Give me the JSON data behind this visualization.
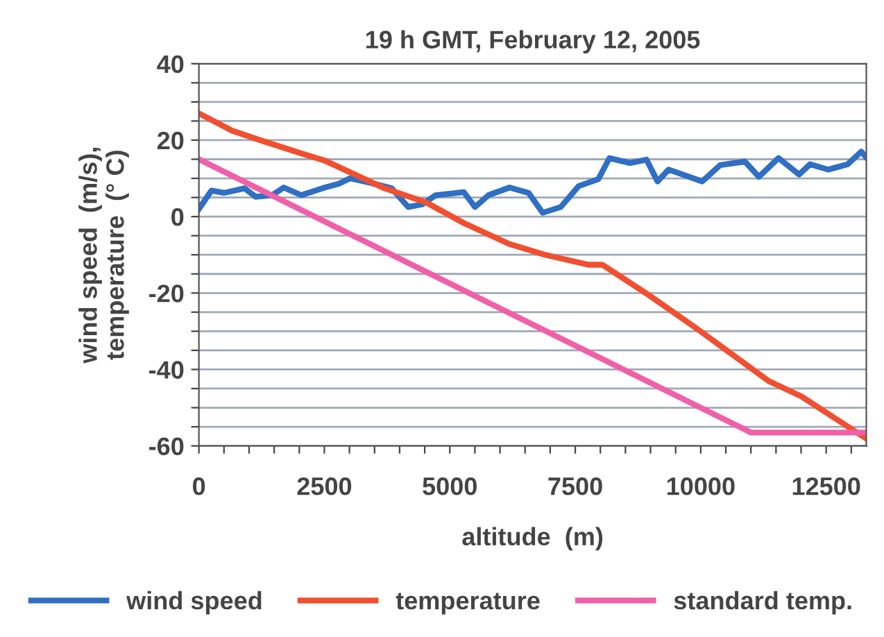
{
  "chart_data": {
    "type": "line",
    "title": "19 h GMT, February 12, 2005",
    "xlabel": "altitude  (m)",
    "ylabel": "wind speed  (m/s),\ntemperature  (° C)",
    "xlim": [
      0,
      13300
    ],
    "ylim": [
      -60,
      40
    ],
    "xticks": [
      0,
      {
        "value": 500,
        "label": null
      },
      {
        "value": 1000,
        "label": null
      },
      {
        "value": 1500,
        "label": null
      },
      {
        "value": 2000,
        "label": null
      },
      2500,
      {
        "value": 3000,
        "label": null
      },
      {
        "value": 3500,
        "label": null
      },
      {
        "value": 4000,
        "label": null
      },
      {
        "value": 4500,
        "label": null
      },
      5000,
      {
        "value": 5500,
        "label": null
      },
      {
        "value": 6000,
        "label": null
      },
      {
        "value": 6500,
        "label": null
      },
      {
        "value": 7000,
        "label": null
      },
      7500,
      {
        "value": 8000,
        "label": null
      },
      {
        "value": 8500,
        "label": null
      },
      {
        "value": 9000,
        "label": null
      },
      {
        "value": 9500,
        "label": null
      },
      10000,
      {
        "value": 10500,
        "label": null
      },
      {
        "value": 11000,
        "label": null
      },
      {
        "value": 11500,
        "label": null
      },
      {
        "value": 12000,
        "label": null
      },
      12500,
      {
        "value": 13000,
        "label": null
      }
    ],
    "yticks": [
      -60,
      {
        "value": -55,
        "label": null
      },
      {
        "value": -50,
        "label": null
      },
      {
        "value": -45,
        "label": null
      },
      -40,
      {
        "value": -35,
        "label": null
      },
      {
        "value": -30,
        "label": null
      },
      {
        "value": -25,
        "label": null
      },
      -20,
      {
        "value": -15,
        "label": null
      },
      {
        "value": -10,
        "label": null
      },
      {
        "value": -5,
        "label": null
      },
      0,
      {
        "value": 5,
        "label": null
      },
      {
        "value": 10,
        "label": null
      },
      {
        "value": 15,
        "label": null
      },
      20,
      {
        "value": 25,
        "label": null
      },
      {
        "value": 30,
        "label": null
      },
      {
        "value": 35,
        "label": null
      },
      40
    ],
    "grid": "y",
    "legend": "bottom",
    "marker": "none",
    "line_style": "solid",
    "series": [
      {
        "name": "wind speed",
        "color": "#2f6fc4",
        "x": [
          0,
          250,
          500,
          910,
          1130,
          1460,
          1690,
          2040,
          2510,
          2790,
          3010,
          3430,
          3840,
          4170,
          4450,
          4720,
          5280,
          5500,
          5770,
          6190,
          6570,
          6850,
          7210,
          7570,
          7960,
          8180,
          8590,
          8920,
          9140,
          9360,
          10030,
          10390,
          10880,
          11160,
          11550,
          11960,
          12180,
          12540,
          12930,
          13200,
          13290
        ],
        "values": [
          2,
          6.8,
          6.2,
          7.4,
          5.2,
          5.6,
          7.6,
          5.6,
          7.6,
          8.6,
          10,
          8.8,
          7.4,
          2.5,
          3.2,
          5.6,
          6.4,
          2.5,
          5.6,
          7.6,
          6.2,
          1,
          2.5,
          8,
          9.8,
          15.3,
          14,
          14.9,
          9.2,
          12.3,
          9.2,
          13.5,
          14.4,
          10.4,
          15.3,
          11,
          13.7,
          12.3,
          13.7,
          17,
          15.6
        ]
      },
      {
        "name": "temperature",
        "color": "#f05030",
        "x": [
          0,
          660,
          1220,
          2050,
          2500,
          3700,
          4530,
          5280,
          6190,
          6900,
          7760,
          8040,
          8950,
          9890,
          11350,
          12000,
          13290
        ],
        "values": [
          27,
          22.5,
          20,
          16.5,
          14.7,
          7.4,
          3.7,
          -1.7,
          -7.2,
          -10,
          -12.6,
          -12.6,
          -20.4,
          -29,
          -43,
          -47,
          -58
        ]
      },
      {
        "name": "standard temp.",
        "color": "#f060a8",
        "x": [
          0,
          11000,
          13290
        ],
        "values": [
          15,
          -56.5,
          -56.5
        ]
      }
    ]
  }
}
